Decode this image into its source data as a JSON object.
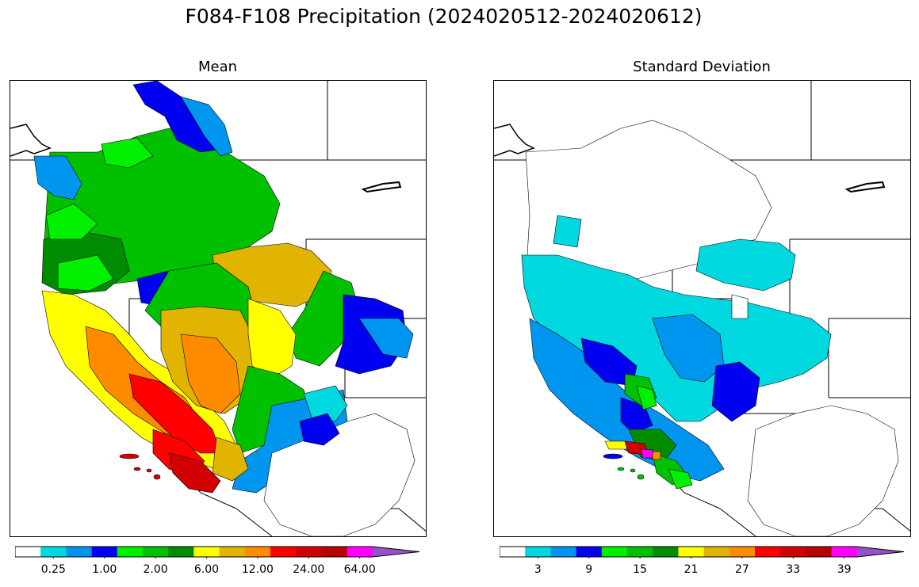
{
  "figure": {
    "title": "F084-F108 Precipitation (2024020512-2024020612)"
  },
  "panels": [
    {
      "title": "Mean",
      "colorbar": {
        "colors": [
          "#ffffff",
          "#00d8e0",
          "#0096f0",
          "#0000f0",
          "#00f000",
          "#00c000",
          "#008c00",
          "#ffff00",
          "#e0b400",
          "#ff8c00",
          "#ff0000",
          "#d00000",
          "#b80000",
          "#ff00ff",
          "#9650c8"
        ],
        "tick_labels": [
          "0.25",
          "1.00",
          "2.00",
          "6.00",
          "12.00",
          "24.00",
          "64.00"
        ],
        "extend": "max"
      }
    },
    {
      "title": "Standard Deviation",
      "colorbar": {
        "colors": [
          "#ffffff",
          "#00d8e0",
          "#0096f0",
          "#0000f0",
          "#00f000",
          "#00c000",
          "#008c00",
          "#ffff00",
          "#e0b400",
          "#ff8c00",
          "#ff0000",
          "#d00000",
          "#b80000",
          "#ff00ff",
          "#9650c8"
        ],
        "tick_labels": [
          "3",
          "9",
          "15",
          "21",
          "27",
          "33",
          "39"
        ],
        "extend": "max"
      }
    }
  ]
}
